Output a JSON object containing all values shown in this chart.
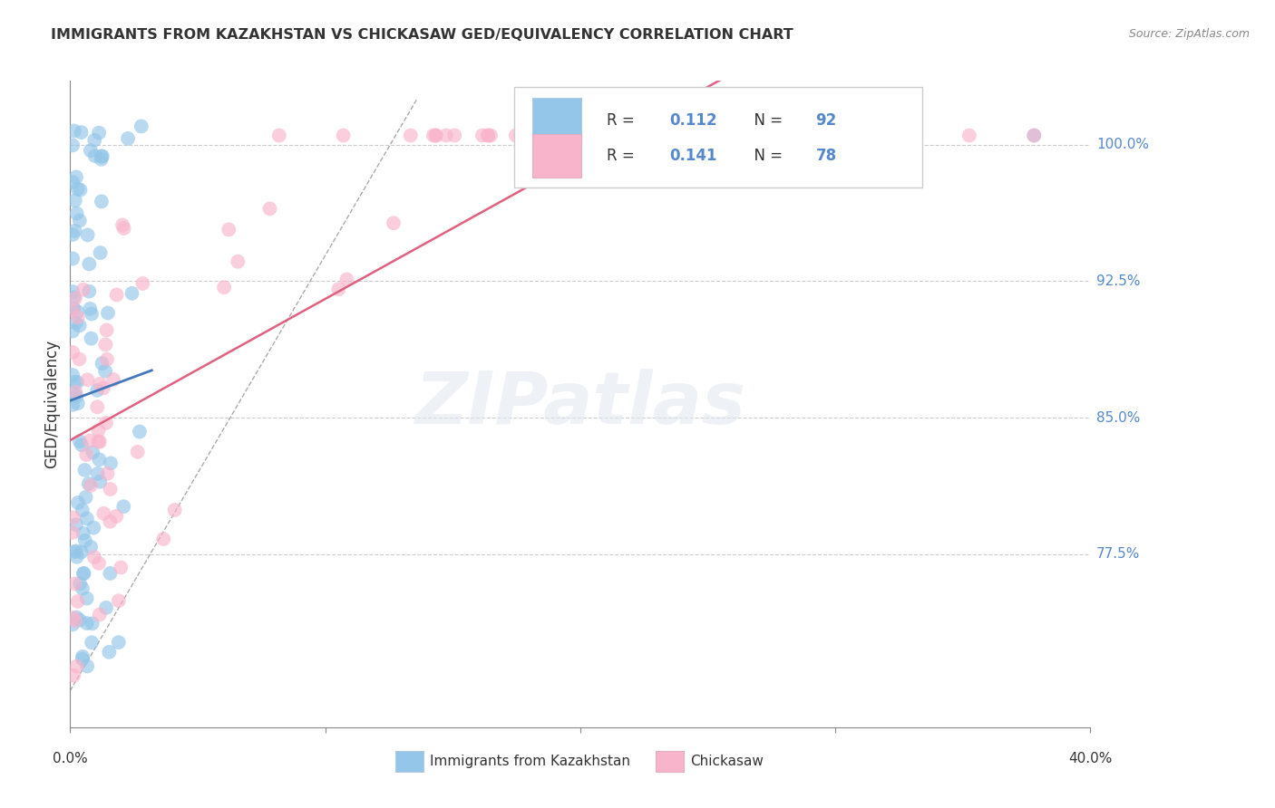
{
  "title": "IMMIGRANTS FROM KAZAKHSTAN VS CHICKASAW GED/EQUIVALENCY CORRELATION CHART",
  "source": "Source: ZipAtlas.com",
  "ylabel": "GED/Equivalency",
  "xmin": 0.0,
  "xmax": 0.4,
  "ymin": 0.68,
  "ymax": 1.035,
  "ytick_positions": [
    0.775,
    0.85,
    0.925,
    1.0
  ],
  "ytick_labels": [
    "77.5%",
    "85.0%",
    "92.5%",
    "100.0%"
  ],
  "legend_r1": "0.112",
  "legend_n1": "92",
  "legend_r2": "0.141",
  "legend_n2": "78",
  "legend_label1": "Immigrants from Kazakhstan",
  "legend_label2": "Chickasaw",
  "blue_color": "#93c6e8",
  "pink_color": "#f8b4cb",
  "blue_line_color": "#4477bb",
  "pink_line_color": "#e06080",
  "grid_color": "#cccccc",
  "watermark": "ZIPatlas",
  "text_color": "#333333",
  "source_color": "#888888",
  "axis_label_color": "#5588cc"
}
